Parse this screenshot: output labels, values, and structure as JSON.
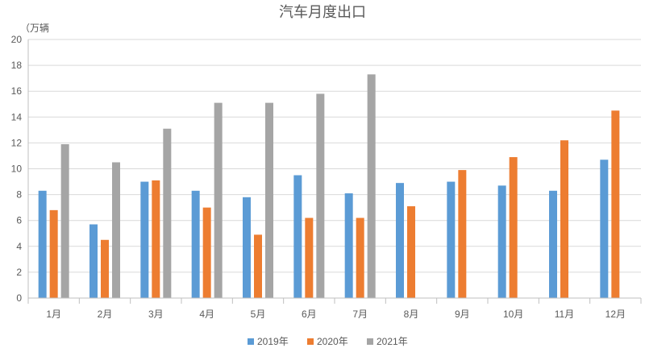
{
  "chart_data": {
    "type": "bar",
    "title": "汽车月度出口",
    "ylabel": "（万辆",
    "xlabel": "",
    "categories": [
      "1月",
      "2月",
      "3月",
      "4月",
      "5月",
      "6月",
      "7月",
      "8月",
      "9月",
      "10月",
      "11月",
      "12月"
    ],
    "series": [
      {
        "name": "2019年",
        "color": "#5B9BD5",
        "values": [
          8.3,
          5.7,
          9.0,
          8.3,
          7.8,
          9.5,
          8.1,
          8.9,
          9.0,
          8.7,
          8.3,
          10.7
        ]
      },
      {
        "name": "2020年",
        "color": "#ED7D31",
        "values": [
          6.8,
          4.5,
          9.1,
          7.0,
          4.9,
          6.2,
          6.2,
          7.1,
          9.9,
          10.9,
          12.2,
          14.5
        ]
      },
      {
        "name": "2021年",
        "color": "#A5A5A5",
        "values": [
          11.9,
          10.5,
          13.1,
          15.1,
          15.1,
          15.8,
          17.3,
          null,
          null,
          null,
          null,
          null
        ]
      }
    ],
    "ylim": [
      0,
      20
    ],
    "yticks": [
      0,
      2,
      4,
      6,
      8,
      10,
      12,
      14,
      16,
      18,
      20
    ],
    "grid": true,
    "legend": "bottom"
  }
}
